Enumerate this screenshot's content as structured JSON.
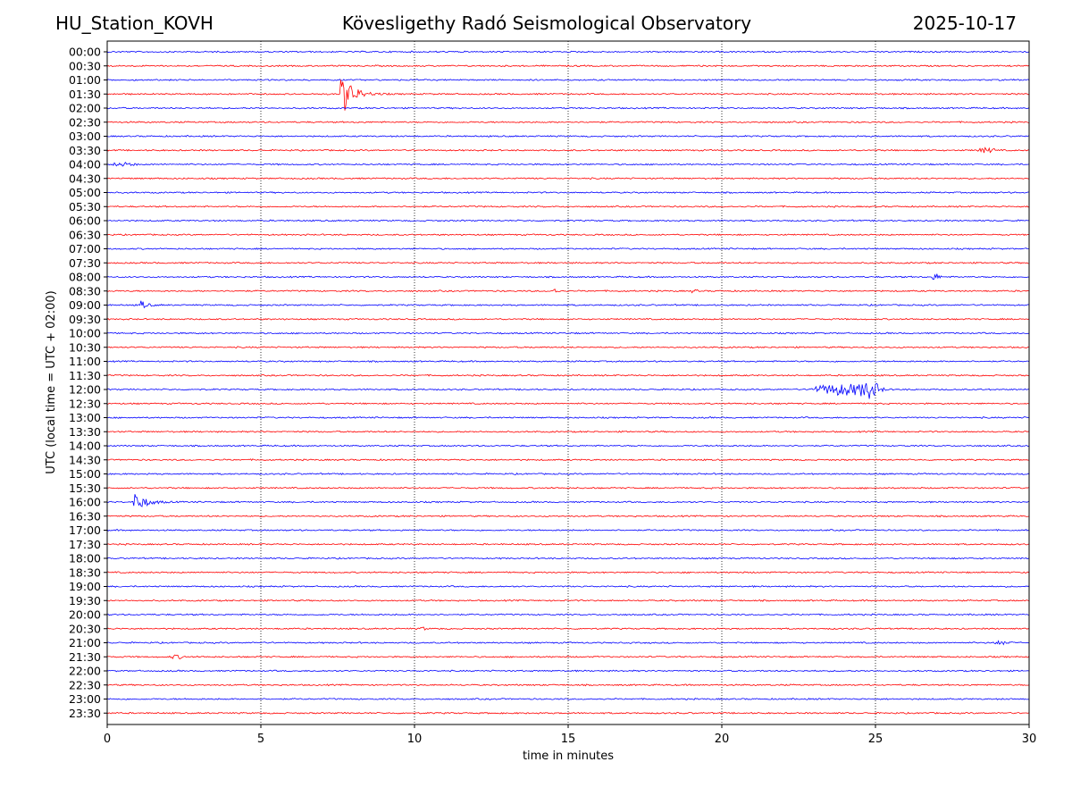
{
  "header": {
    "station": "HU_Station_KOVH",
    "observatory": "Kövesligethy Radó Seismological Observatory",
    "date": "2025-10-17"
  },
  "chart_data": {
    "type": "line",
    "title": "Kövesligethy Radó Seismological Observatory",
    "xlabel": "time in minutes",
    "ylabel": "UTC (local time = UTC + 02:00)",
    "xlim": [
      0,
      30
    ],
    "x_ticks": [
      "0",
      "5",
      "10",
      "15",
      "20",
      "25",
      "30"
    ],
    "x_tick_values": [
      0,
      5,
      10,
      15,
      20,
      25,
      30
    ],
    "grid": "vertical dotted",
    "row_labels": [
      "00:00",
      "00:30",
      "01:00",
      "01:30",
      "02:00",
      "02:30",
      "03:00",
      "03:30",
      "04:00",
      "04:30",
      "05:00",
      "05:30",
      "06:00",
      "06:30",
      "07:00",
      "07:30",
      "08:00",
      "08:30",
      "09:00",
      "09:30",
      "10:00",
      "10:30",
      "11:00",
      "11:30",
      "12:00",
      "12:30",
      "13:00",
      "13:30",
      "14:00",
      "14:30",
      "15:00",
      "15:30",
      "16:00",
      "16:30",
      "17:00",
      "17:30",
      "18:00",
      "18:30",
      "19:00",
      "19:30",
      "20:00",
      "20:30",
      "21:00",
      "21:30",
      "22:00",
      "22:30",
      "23:00",
      "23:30"
    ],
    "row_colors": [
      "#0000ff",
      "#ff0000"
    ],
    "noise_amplitude": 0.12,
    "events": [
      {
        "row": "01:30",
        "start_min": 7.6,
        "duration_min": 1.6,
        "peak": 3.5,
        "spike": true
      },
      {
        "row": "03:30",
        "start_min": 28.3,
        "duration_min": 1.2,
        "peak": 0.35,
        "spike": false
      },
      {
        "row": "04:00",
        "start_min": 0.1,
        "duration_min": 1.6,
        "peak": 0.25,
        "spike": false
      },
      {
        "row": "08:00",
        "start_min": 26.8,
        "duration_min": 0.6,
        "peak": 0.5,
        "spike": false
      },
      {
        "row": "08:30",
        "start_min": 14.4,
        "duration_min": 0.6,
        "peak": 0.3,
        "spike": false
      },
      {
        "row": "08:30",
        "start_min": 19.0,
        "duration_min": 0.4,
        "peak": 0.3,
        "spike": false
      },
      {
        "row": "09:00",
        "start_min": 1.05,
        "duration_min": 0.8,
        "peak": 0.9,
        "spike": true
      },
      {
        "row": "12:00",
        "start_min": 22.85,
        "duration_min": 4.5,
        "peak": 0.9,
        "spike": false
      },
      {
        "row": "12:00",
        "start_min": 24.5,
        "duration_min": 1.2,
        "peak": 0.85,
        "spike": false
      },
      {
        "row": "16:00",
        "start_min": 0.85,
        "duration_min": 1.6,
        "peak": 1.7,
        "spike": true
      },
      {
        "row": "20:30",
        "start_min": 10.2,
        "duration_min": 0.3,
        "peak": 0.3,
        "spike": false
      },
      {
        "row": "21:00",
        "start_min": 28.8,
        "duration_min": 1.2,
        "peak": 0.25,
        "spike": false
      },
      {
        "row": "21:30",
        "start_min": 2.0,
        "duration_min": 1.0,
        "peak": 0.25,
        "spike": false
      }
    ]
  }
}
